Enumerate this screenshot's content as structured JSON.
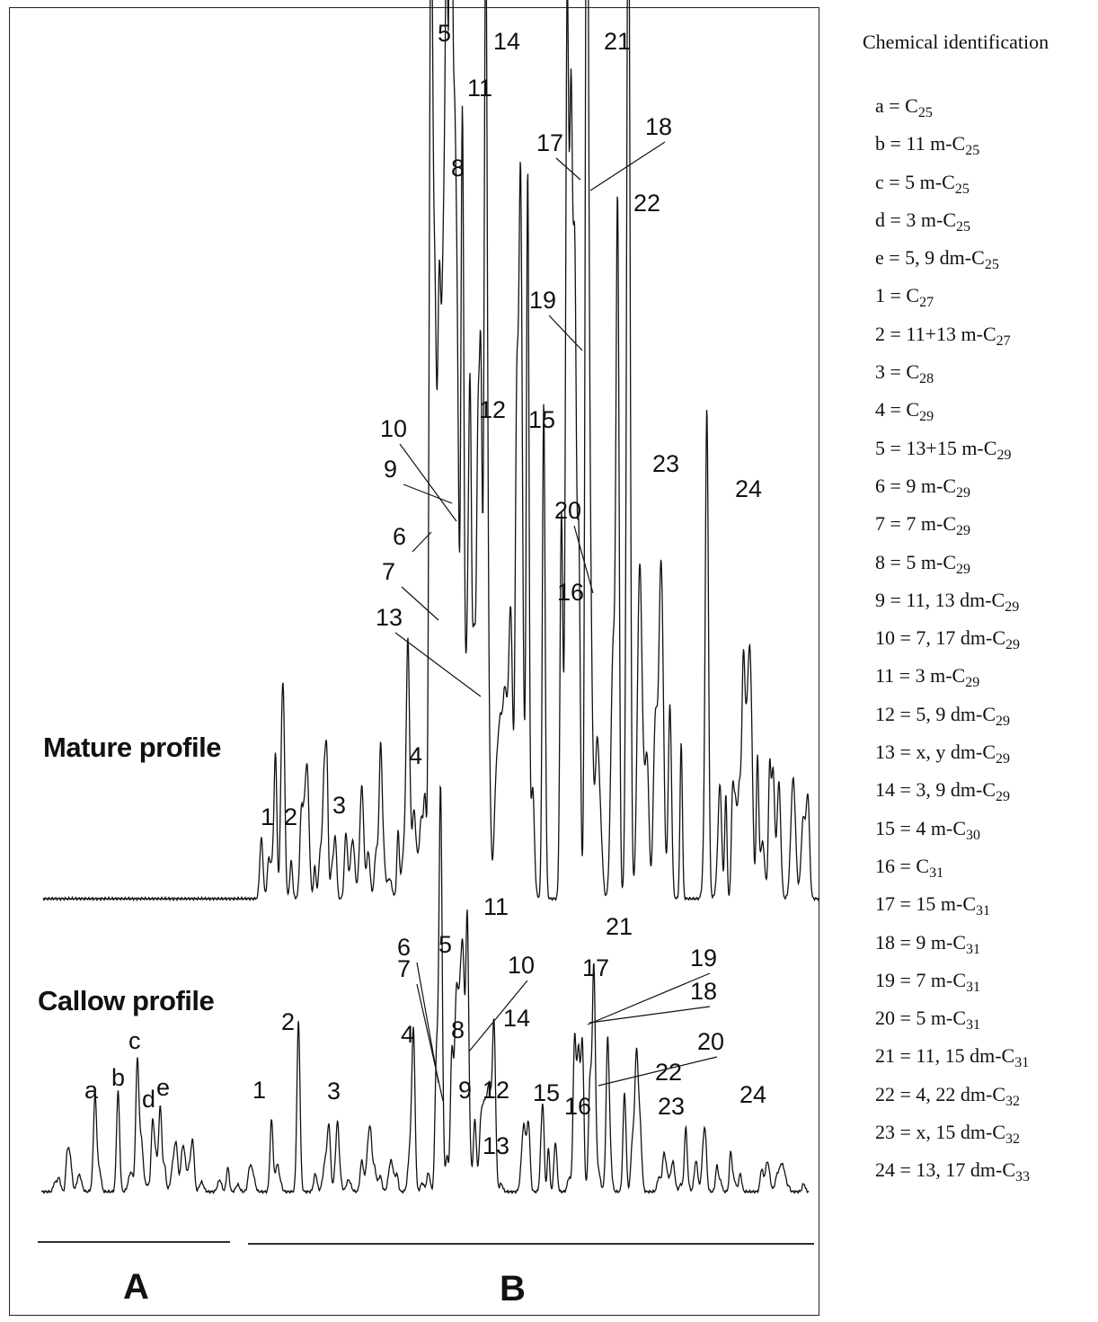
{
  "figure": {
    "profiles": [
      {
        "label": "Mature profile"
      },
      {
        "label": "Callow profile"
      }
    ],
    "sections": [
      "A",
      "B"
    ]
  },
  "chart_data": [
    {
      "type": "line",
      "series": [
        {
          "name": "Mature profile"
        }
      ],
      "peaks": [
        {
          "label": "1",
          "x": 0.31
        },
        {
          "label": "2",
          "x": 0.34
        },
        {
          "label": "3",
          "x": 0.39
        },
        {
          "label": "4",
          "x": 0.47
        },
        {
          "label": "5",
          "x": 0.5
        },
        {
          "label": "6",
          "x": 0.505
        },
        {
          "label": "7",
          "x": 0.51
        },
        {
          "label": "8",
          "x": 0.52
        },
        {
          "label": "9",
          "x": 0.525
        },
        {
          "label": "10",
          "x": 0.53
        },
        {
          "label": "11",
          "x": 0.54
        },
        {
          "label": "12",
          "x": 0.55
        },
        {
          "label": "13",
          "x": 0.555
        },
        {
          "label": "14",
          "x": 0.57
        },
        {
          "label": "15",
          "x": 0.61
        },
        {
          "label": "16",
          "x": 0.645
        },
        {
          "label": "17",
          "x": 0.675
        },
        {
          "label": "18",
          "x": 0.68
        },
        {
          "label": "19",
          "x": 0.685
        },
        {
          "label": "20",
          "x": 0.69
        },
        {
          "label": "21",
          "x": 0.7
        },
        {
          "label": "22",
          "x": 0.74
        },
        {
          "label": "23",
          "x": 0.755
        },
        {
          "label": "24",
          "x": 0.855
        }
      ]
    },
    {
      "type": "line",
      "series": [
        {
          "name": "Callow profile"
        }
      ],
      "peaks": [
        {
          "label": "a",
          "x": 0.07
        },
        {
          "label": "b",
          "x": 0.1
        },
        {
          "label": "c",
          "x": 0.125
        },
        {
          "label": "d",
          "x": 0.145
        },
        {
          "label": "e",
          "x": 0.155
        },
        {
          "label": "1",
          "x": 0.3
        },
        {
          "label": "2",
          "x": 0.335
        },
        {
          "label": "3",
          "x": 0.375
        },
        {
          "label": "4",
          "x": 0.485
        },
        {
          "label": "5",
          "x": 0.52
        },
        {
          "label": "6",
          "x": 0.515
        },
        {
          "label": "7",
          "x": 0.52
        },
        {
          "label": "8",
          "x": 0.535
        },
        {
          "label": "9",
          "x": 0.54
        },
        {
          "label": "10",
          "x": 0.55
        },
        {
          "label": "11",
          "x": 0.555
        },
        {
          "label": "12",
          "x": 0.565
        },
        {
          "label": "13",
          "x": 0.575
        },
        {
          "label": "14",
          "x": 0.59
        },
        {
          "label": "15",
          "x": 0.635
        },
        {
          "label": "16",
          "x": 0.67
        },
        {
          "label": "17",
          "x": 0.695
        },
        {
          "label": "18",
          "x": 0.7
        },
        {
          "label": "19",
          "x": 0.705
        },
        {
          "label": "20",
          "x": 0.715
        },
        {
          "label": "21",
          "x": 0.72
        },
        {
          "label": "22",
          "x": 0.76
        },
        {
          "label": "23",
          "x": 0.775
        },
        {
          "label": "24",
          "x": 0.865
        }
      ]
    }
  ],
  "legend": {
    "title": "Chemical identification",
    "items": [
      {
        "label": "a = ",
        "base": "C",
        "sub": "25"
      },
      {
        "label": "b = 11 m-",
        "base": "C",
        "sub": "25"
      },
      {
        "label": "c = 5 m-",
        "base": "C",
        "sub": "25"
      },
      {
        "label": "d = 3 m-",
        "base": "C",
        "sub": "25"
      },
      {
        "label": "e = 5, 9 dm-",
        "base": "C",
        "sub": "25"
      },
      {
        "label": "1 = ",
        "base": "C",
        "sub": "27"
      },
      {
        "label": "2 = 11+13 m-",
        "base": "C",
        "sub": "27"
      },
      {
        "label": "3 = ",
        "base": "C",
        "sub": "28"
      },
      {
        "label": "4 = ",
        "base": "C",
        "sub": "29"
      },
      {
        "label": "5 = 13+15 m-",
        "base": "C",
        "sub": "29"
      },
      {
        "label": "6 = 9 m-",
        "base": "C",
        "sub": "29"
      },
      {
        "label": "7 = 7 m-",
        "base": "C",
        "sub": "29"
      },
      {
        "label": "8 = 5 m-",
        "base": "C",
        "sub": "29"
      },
      {
        "label": "9 = 11, 13 dm-",
        "base": "C",
        "sub": "29"
      },
      {
        "label": "10 = 7, 17 dm-",
        "base": "C",
        "sub": "29"
      },
      {
        "label": "11 = 3 m-",
        "base": "C",
        "sub": "29"
      },
      {
        "label": "12 = 5, 9 dm-",
        "base": "C",
        "sub": "29"
      },
      {
        "label": "13 = x, y dm-",
        "base": "C",
        "sub": "29"
      },
      {
        "label": "14 = 3, 9 dm-",
        "base": "C",
        "sub": "29"
      },
      {
        "label": "15 = 4 m-",
        "base": "C",
        "sub": "30"
      },
      {
        "label": "16 = ",
        "base": "C",
        "sub": "31"
      },
      {
        "label": "17 = 15 m-",
        "base": "C",
        "sub": "31"
      },
      {
        "label": "18 = 9 m-",
        "base": "C",
        "sub": "31"
      },
      {
        "label": "19 = 7 m-",
        "base": "C",
        "sub": "31"
      },
      {
        "label": "20 = 5 m-",
        "base": "C",
        "sub": "31"
      },
      {
        "label": "21 = 11, 15 dm-",
        "base": "C",
        "sub": "31"
      },
      {
        "label": "22 = 4, 22 dm-",
        "base": "C",
        "sub": "32"
      },
      {
        "label": "23 = x, 15 dm-",
        "base": "C",
        "sub": "32"
      },
      {
        "label": "24 = 13, 17 dm-",
        "base": "C",
        "sub": "33"
      }
    ]
  }
}
